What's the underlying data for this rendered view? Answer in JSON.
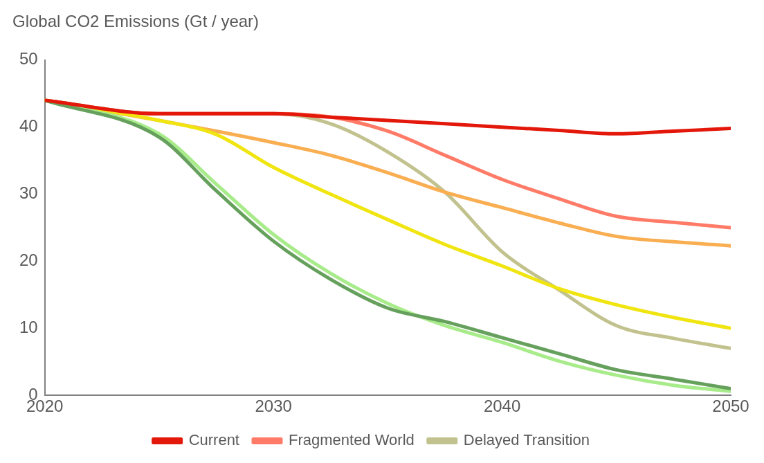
{
  "chart_data": {
    "type": "line",
    "title": "Global CO2 Emissions (Gt / year)",
    "x": [
      2020,
      2025,
      2027.5,
      2030,
      2032.5,
      2035,
      2037.5,
      2040,
      2042.5,
      2045,
      2047.5,
      2050
    ],
    "series": [
      {
        "name": "Delayed Transition",
        "color": "#c2c28e",
        "values": [
          44,
          42,
          42,
          42,
          40.5,
          36.3,
          30.3,
          21.4,
          15.7,
          10.4,
          8.5,
          7
        ]
      },
      {
        "name": "Fragmented World",
        "color": "#ff7b67",
        "values": [
          44,
          42,
          42,
          42,
          41.5,
          39.4,
          35.8,
          32.2,
          29.3,
          26.7,
          25.8,
          25
        ]
      },
      {
        "color": "#f9ae52",
        "values": [
          44,
          41,
          39.4,
          37.7,
          35.8,
          33.2,
          30.3,
          28,
          25.7,
          23.7,
          22.9,
          22.3
        ]
      },
      {
        "color": "#f0e510",
        "values": [
          44,
          41,
          38.9,
          34,
          30,
          26.2,
          22.5,
          19.3,
          15.9,
          13.5,
          11.6,
          10
        ]
      },
      {
        "color": "#a8eb8a",
        "values": [
          44,
          39,
          31.5,
          24,
          18.2,
          13.7,
          10.4,
          7.9,
          5.1,
          3,
          1.5,
          0.6
        ]
      },
      {
        "color": "#66a05d",
        "values": [
          44,
          38.5,
          30.5,
          23,
          17.3,
          13,
          11,
          8.6,
          6.2,
          3.8,
          2.4,
          1
        ]
      },
      {
        "name": "Current",
        "color": "#e3170a",
        "values": [
          44,
          42,
          42,
          42,
          41.5,
          41,
          40.5,
          40,
          39.5,
          39,
          39.4,
          39.8
        ]
      }
    ],
    "xlim": [
      2020,
      2050
    ],
    "xticks": [
      2020,
      2030,
      2040,
      2050
    ],
    "ylim": [
      0,
      50
    ],
    "yticks": [
      0,
      10,
      20,
      30,
      40,
      50
    ],
    "grid": false,
    "legend": "bottom",
    "marker": "none",
    "line_style": "solid"
  }
}
